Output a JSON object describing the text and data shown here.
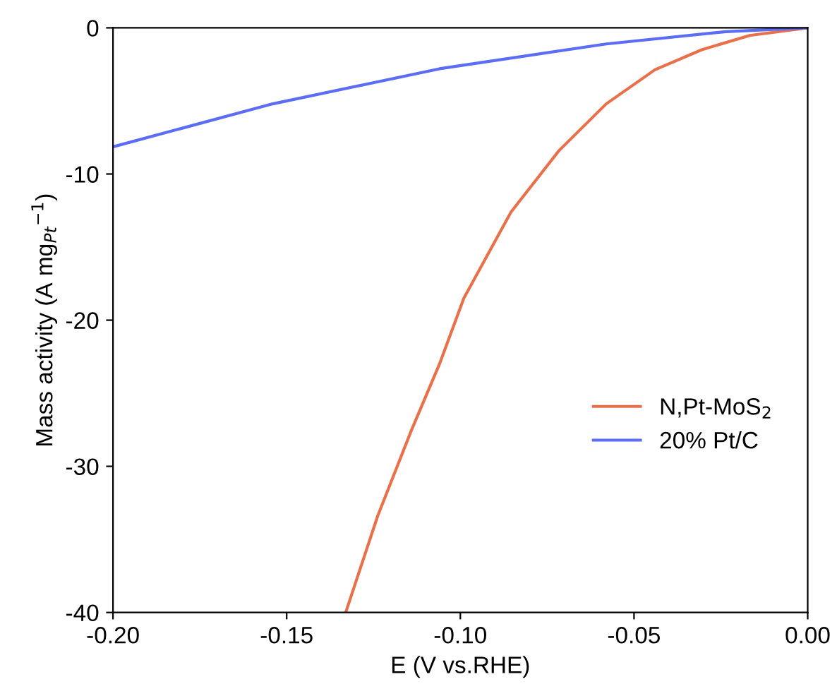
{
  "chart_data": {
    "type": "line",
    "xlabel": "E (V vs.RHE)",
    "ylabel": "Mass activity (A mg$_{Pt}$$^{−1}$)",
    "xlim": [
      -0.2,
      0.0
    ],
    "ylim": [
      -40,
      0
    ],
    "xticks": [
      {
        "value": -0.2,
        "label": "-0.20"
      },
      {
        "value": -0.15,
        "label": "-0.15"
      },
      {
        "value": -0.1,
        "label": "-0.10"
      },
      {
        "value": -0.05,
        "label": "-0.05"
      },
      {
        "value": 0.0,
        "label": "0.00"
      }
    ],
    "yticks": [
      {
        "value": -40,
        "label": "-40"
      },
      {
        "value": -30,
        "label": "-30"
      },
      {
        "value": -20,
        "label": "-20"
      },
      {
        "value": -10,
        "label": "-10"
      },
      {
        "value": 0,
        "label": "0"
      }
    ],
    "grid": false,
    "legend": "right",
    "marker": "none",
    "line_style": "solid",
    "series": [
      {
        "name": "N,Pt-MoS$_{2}$",
        "color": "#e8704a",
        "x": [
          -0.133,
          -0.1238,
          -0.1142,
          -0.106,
          -0.099,
          -0.0854,
          -0.0716,
          -0.058,
          -0.044,
          -0.0305,
          -0.0167,
          0.0
        ],
        "values": [
          -40,
          -33.4,
          -27.6,
          -23.0,
          -18.5,
          -12.6,
          -8.4,
          -5.2,
          -2.87,
          -1.5,
          -0.52,
          0
        ]
      },
      {
        "name": "20% Pt/C",
        "color": "#5b6cf5",
        "x": [
          -0.2,
          -0.154,
          -0.106,
          -0.058,
          -0.0236,
          0.0
        ],
        "values": [
          -8.14,
          -5.2,
          -2.8,
          -1.1,
          -0.26,
          0
        ]
      }
    ]
  }
}
